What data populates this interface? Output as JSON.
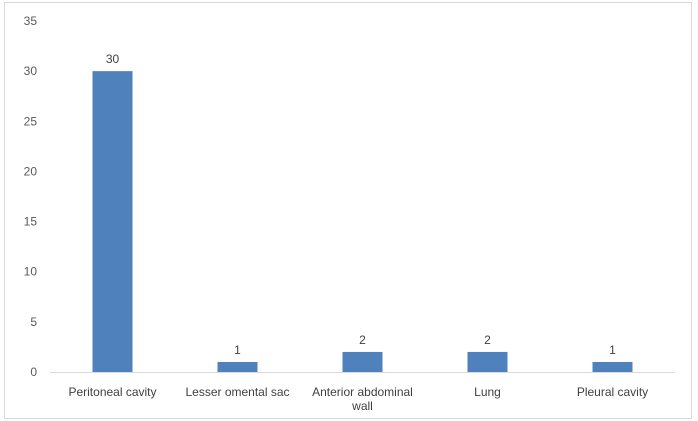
{
  "chart_data": {
    "type": "bar",
    "title": "",
    "xlabel": "",
    "ylabel": "",
    "categories": [
      [
        "Peritoneal cavity"
      ],
      [
        "Lesser omental sac"
      ],
      [
        "Anterior abdominal",
        "wall"
      ],
      [
        "Lung"
      ],
      [
        "Pleural cavity"
      ]
    ],
    "values": [
      30,
      1,
      2,
      2,
      1
    ],
    "data_labels": [
      "30",
      "1",
      "2",
      "2",
      "1"
    ],
    "ylim": [
      0,
      35
    ],
    "yticks": [
      0,
      5,
      10,
      15,
      20,
      25,
      30,
      35
    ],
    "ytick_labels": [
      "0",
      "5",
      "10",
      "15",
      "20",
      "25",
      "30",
      "35"
    ],
    "grid": false,
    "legend": "none",
    "bar_color": "#4f81bd",
    "axis_color": "#d9d9d9"
  }
}
